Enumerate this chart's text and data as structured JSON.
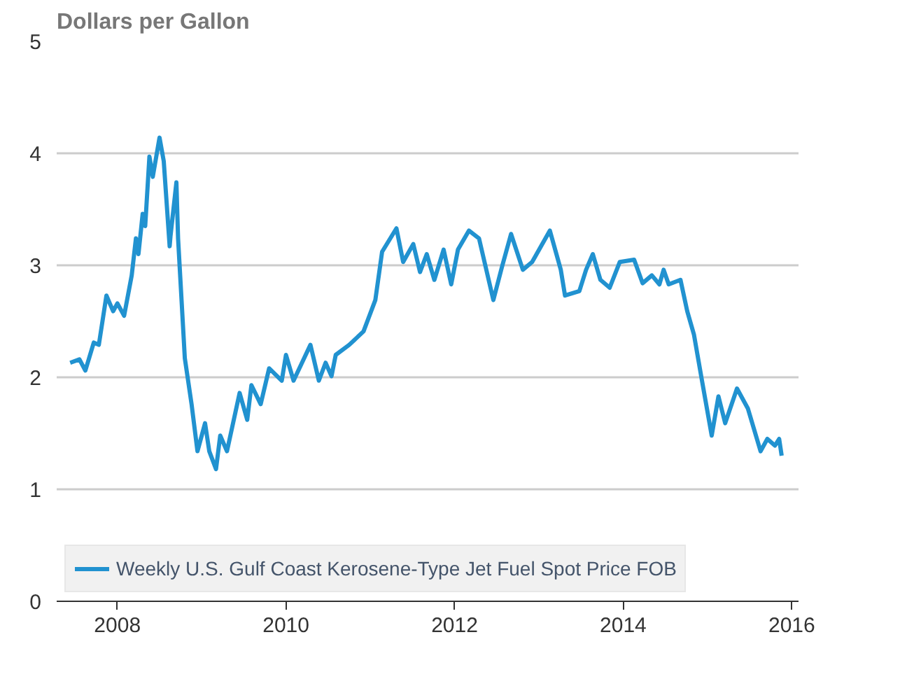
{
  "chart_data": {
    "type": "line",
    "ylabel": "Dollars per Gallon",
    "x": [
      2007.44,
      2007.55,
      2007.62,
      2007.72,
      2007.78,
      2007.87,
      2007.95,
      2008.0,
      2008.08,
      2008.17,
      2008.22,
      2008.25,
      2008.3,
      2008.33,
      2008.38,
      2008.42,
      2008.5,
      2008.55,
      2008.62,
      2008.63,
      2008.7,
      2008.72,
      2008.8,
      2008.88,
      2008.95,
      2009.04,
      2009.09,
      2009.17,
      2009.22,
      2009.3,
      2009.45,
      2009.54,
      2009.59,
      2009.7,
      2009.8,
      2009.95,
      2010.0,
      2010.09,
      2010.29,
      2010.39,
      2010.47,
      2010.54,
      2010.59,
      2010.75,
      2010.92,
      2011.06,
      2011.14,
      2011.31,
      2011.39,
      2011.51,
      2011.59,
      2011.67,
      2011.76,
      2011.87,
      2011.96,
      2012.04,
      2012.17,
      2012.29,
      2012.46,
      2012.56,
      2012.67,
      2012.81,
      2012.92,
      2013.13,
      2013.26,
      2013.31,
      2013.48,
      2013.56,
      2013.64,
      2013.73,
      2013.84,
      2013.96,
      2014.13,
      2014.23,
      2014.34,
      2014.43,
      2014.48,
      2014.54,
      2014.68,
      2014.76,
      2014.84,
      2014.93,
      2015.05,
      2015.13,
      2015.21,
      2015.35,
      2015.48,
      2015.63,
      2015.71,
      2015.8,
      2015.85,
      2015.88
    ],
    "series": [
      {
        "name": "Weekly U.S. Gulf Coast Kerosene-Type Jet Fuel Spot Price FOB",
        "color": "#2192d0",
        "values": [
          2.13,
          2.16,
          2.06,
          2.31,
          2.29,
          2.73,
          2.59,
          2.66,
          2.55,
          2.91,
          3.24,
          3.1,
          3.46,
          3.35,
          3.97,
          3.79,
          4.14,
          3.93,
          3.17,
          3.26,
          3.74,
          3.24,
          2.17,
          1.76,
          1.34,
          1.59,
          1.34,
          1.18,
          1.48,
          1.34,
          1.86,
          1.62,
          1.93,
          1.76,
          2.08,
          1.97,
          2.2,
          1.97,
          2.29,
          1.97,
          2.13,
          2.01,
          2.2,
          2.29,
          2.41,
          2.69,
          3.12,
          3.33,
          3.03,
          3.19,
          2.94,
          3.1,
          2.87,
          3.14,
          2.83,
          3.14,
          3.31,
          3.24,
          2.69,
          2.98,
          3.28,
          2.96,
          3.03,
          3.31,
          2.96,
          2.73,
          2.77,
          2.96,
          3.1,
          2.87,
          2.8,
          3.03,
          3.05,
          2.84,
          2.91,
          2.83,
          2.96,
          2.83,
          2.87,
          2.59,
          2.38,
          1.99,
          1.48,
          1.83,
          1.59,
          1.9,
          1.72,
          1.34,
          1.45,
          1.39,
          1.45,
          1.3
        ]
      }
    ],
    "xlim": [
      2007.28,
      2016.08
    ],
    "xticks": [
      2008,
      2010,
      2012,
      2014,
      2016
    ],
    "ylim": [
      0,
      5
    ],
    "yticks": [
      0,
      1,
      2,
      3,
      4,
      5
    ],
    "grid": "y",
    "legend": "bottom",
    "marker": "none",
    "line_style": "solid"
  }
}
